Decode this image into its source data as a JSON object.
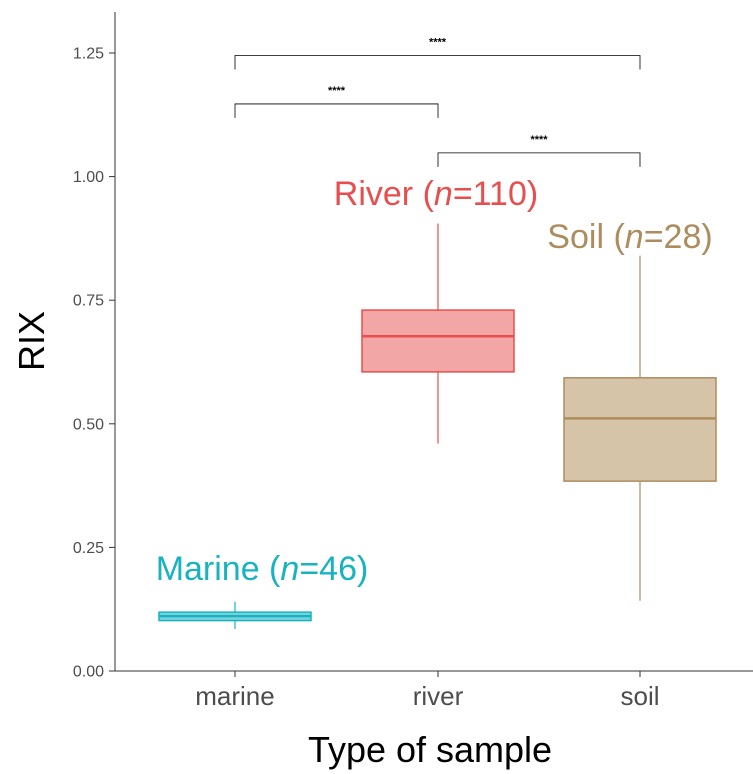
{
  "chart_data": {
    "type": "box",
    "xlabel": "Type of sample",
    "ylabel": "RIX",
    "ylim": [
      0,
      1.25
    ],
    "yticks": [
      "0.00",
      "0.25",
      "0.50",
      "0.75",
      "1.00",
      "1.25"
    ],
    "categories": [
      "marine",
      "river",
      "soil"
    ],
    "grid": false,
    "boxes": [
      {
        "category": "marine",
        "whisker_low": 0.085,
        "q1": 0.102,
        "median": 0.111,
        "q3": 0.119,
        "whisker_high": 0.14,
        "color": "#17b3c0",
        "fill": "#7fd3da",
        "label_prefix": "Marine (",
        "label_n": "n",
        "label_suffix": "=46)"
      },
      {
        "category": "river",
        "whisker_low": 0.46,
        "q1": 0.605,
        "median": 0.677,
        "q3": 0.73,
        "whisker_high": 0.905,
        "color": "#e84e4e",
        "fill": "#f2a6a6",
        "label_prefix": "River (",
        "label_n": "n",
        "label_suffix": "=110)"
      },
      {
        "category": "soil",
        "whisker_low": 0.142,
        "q1": 0.384,
        "median": 0.511,
        "q3": 0.593,
        "whisker_high": 0.84,
        "color": "#ad8d5e",
        "fill": "#d5c4a8",
        "label_prefix": "Soil (",
        "label_n": "n",
        "label_suffix": "=28)"
      }
    ],
    "significance": [
      {
        "from": "marine",
        "to": "soil",
        "y": 1.245,
        "text": "****"
      },
      {
        "from": "marine",
        "to": "river",
        "y": 1.147,
        "text": "****"
      },
      {
        "from": "river",
        "to": "soil",
        "y": 1.048,
        "text": "****"
      }
    ]
  }
}
